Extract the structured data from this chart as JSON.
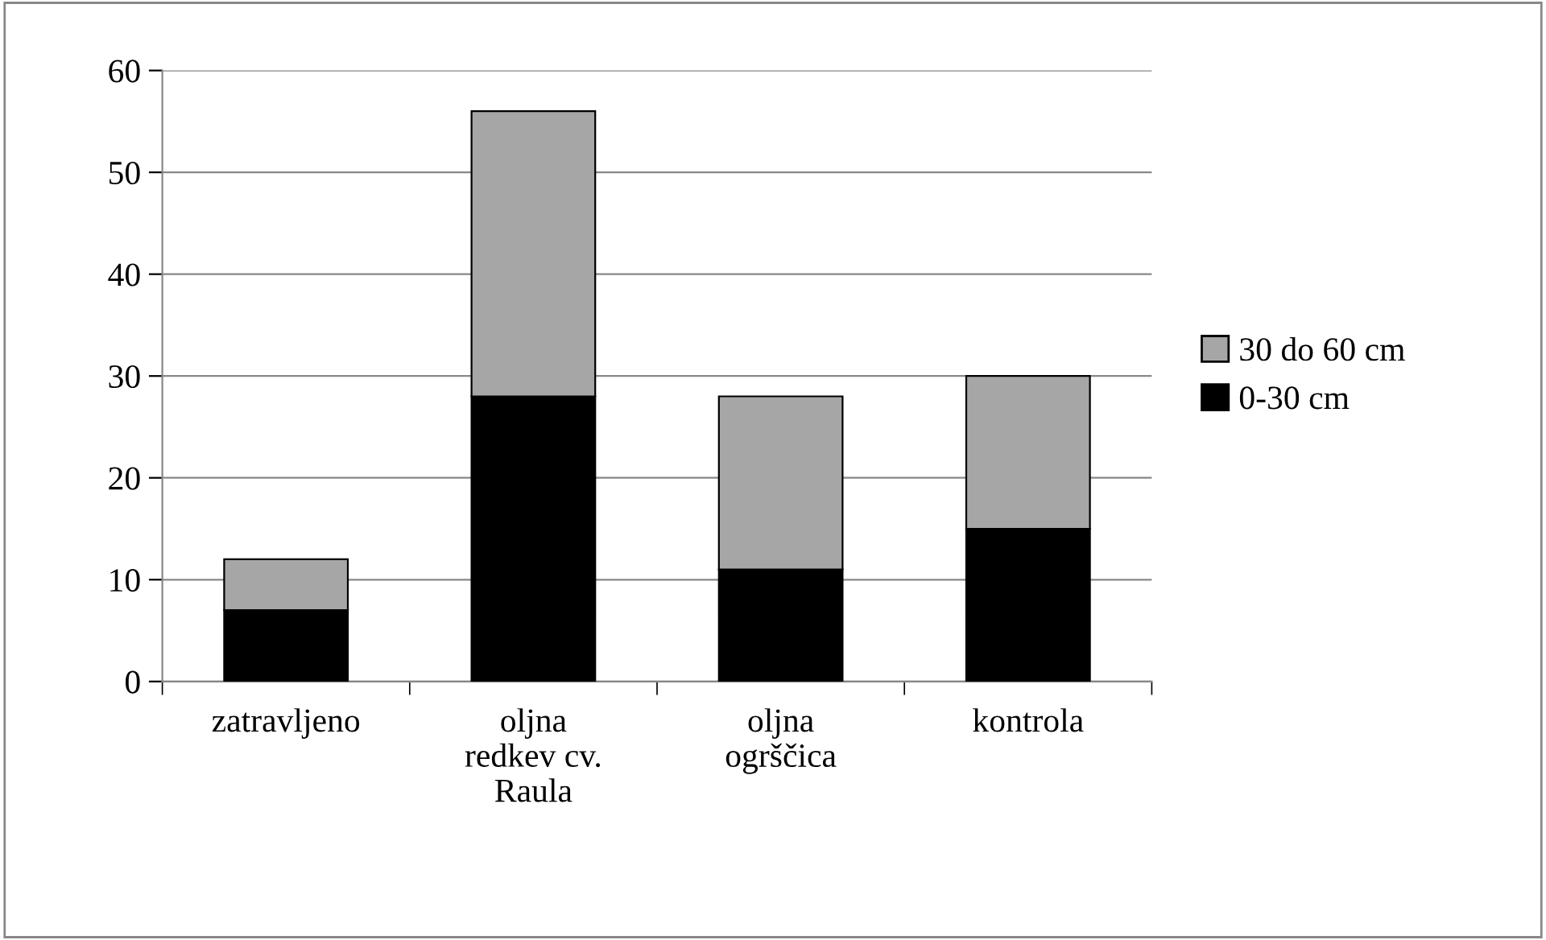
{
  "chart_data": {
    "type": "bar",
    "stacked": true,
    "categories": [
      "zatravljeno",
      "oljna\nredkev cv.\nRaula",
      "oljna\nogrščica",
      "kontrola"
    ],
    "series": [
      {
        "name": "0-30 cm",
        "color": "#000000",
        "values": [
          7,
          28,
          11,
          15
        ]
      },
      {
        "name": "30 do 60 cm",
        "color": "#a6a6a6",
        "values": [
          5,
          28,
          17,
          15
        ]
      }
    ],
    "ylim": [
      0,
      60
    ],
    "yticks": [
      0,
      10,
      20,
      30,
      40,
      50,
      60
    ],
    "grid": "y",
    "legend": "right"
  }
}
